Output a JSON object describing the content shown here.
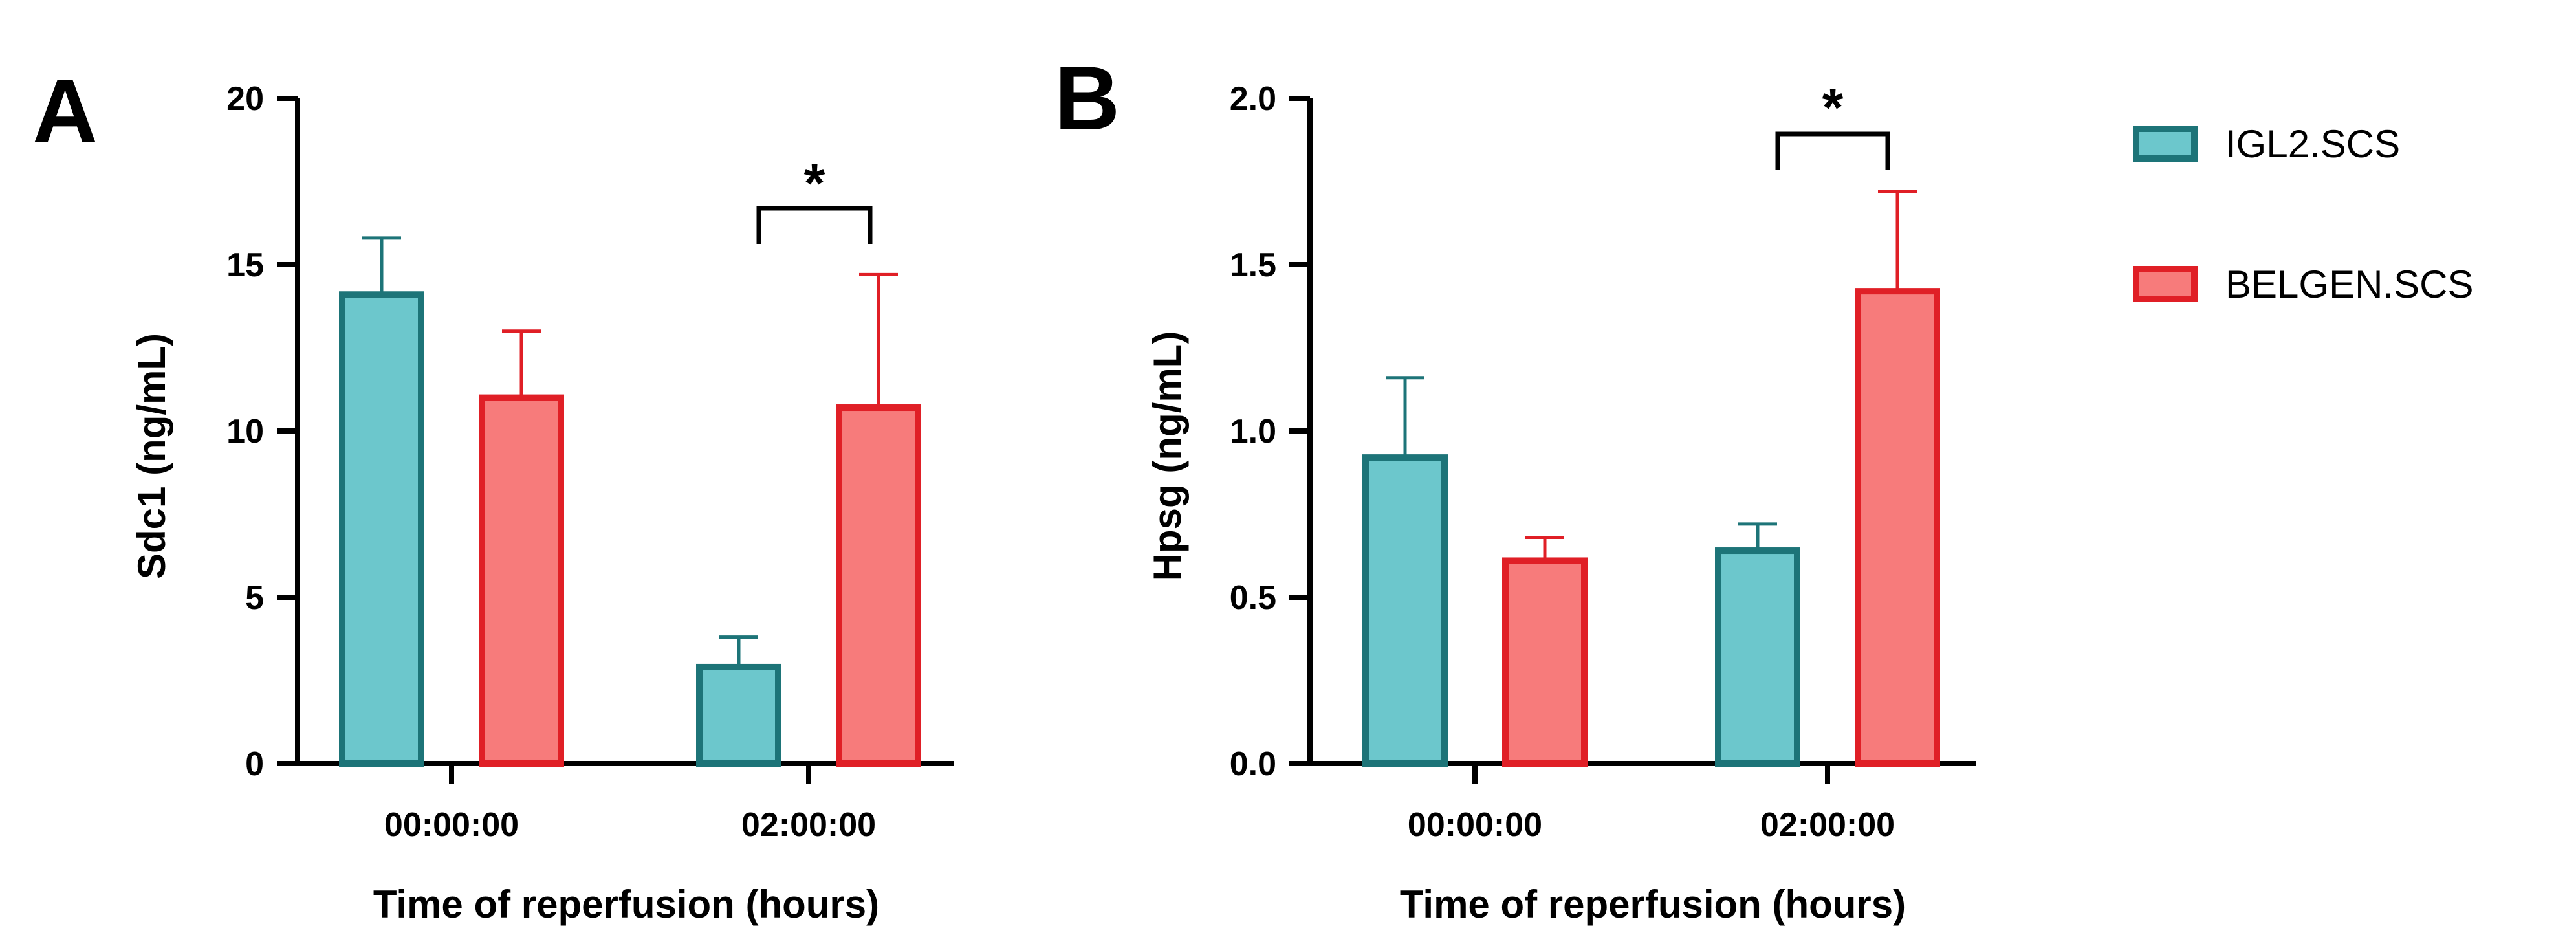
{
  "legend": [
    {
      "name": "IGL2.SCS",
      "fill": "#6cc7cc",
      "stroke": "#1d7478"
    },
    {
      "name": "BELGEN.SCS",
      "fill": "#f77b7b",
      "stroke": "#e01f26"
    }
  ],
  "chart_data": [
    {
      "panel": "A",
      "type": "bar",
      "categories": [
        "00:00:00",
        "02:00:00"
      ],
      "series": [
        {
          "name": "IGL2.SCS",
          "values": [
            14.1,
            2.9
          ],
          "errors": [
            1.7,
            0.9
          ]
        },
        {
          "name": "BELGEN.SCS",
          "values": [
            11.0,
            10.7
          ],
          "errors": [
            2.0,
            4.0
          ]
        }
      ],
      "ylabel": "Sdc1 (ng/mL)",
      "xlabel": "Time of reperfusion (hours)",
      "ylim": [
        0,
        20
      ],
      "yticks": [
        "0",
        "5",
        "10",
        "15",
        "20"
      ],
      "ytick_values": [
        0,
        5,
        10,
        15,
        20
      ],
      "significance": [
        {
          "category": "02:00:00",
          "label": "*"
        }
      ]
    },
    {
      "panel": "B",
      "type": "bar",
      "categories": [
        "00:00:00",
        "02:00:00"
      ],
      "series": [
        {
          "name": "IGL2.SCS",
          "values": [
            0.92,
            0.64
          ],
          "errors": [
            0.24,
            0.08
          ]
        },
        {
          "name": "BELGEN.SCS",
          "values": [
            0.61,
            1.42
          ],
          "errors": [
            0.07,
            0.3
          ]
        }
      ],
      "ylabel": "Hpsg (ng/mL)",
      "xlabel": "Time of reperfusion (hours)",
      "ylim": [
        0,
        2
      ],
      "yticks": [
        "0.0",
        "0.5",
        "1.0",
        "1.5",
        "2.0"
      ],
      "ytick_values": [
        0,
        0.5,
        1.0,
        1.5,
        2.0
      ],
      "significance": [
        {
          "category": "02:00:00",
          "label": "*"
        }
      ]
    }
  ]
}
